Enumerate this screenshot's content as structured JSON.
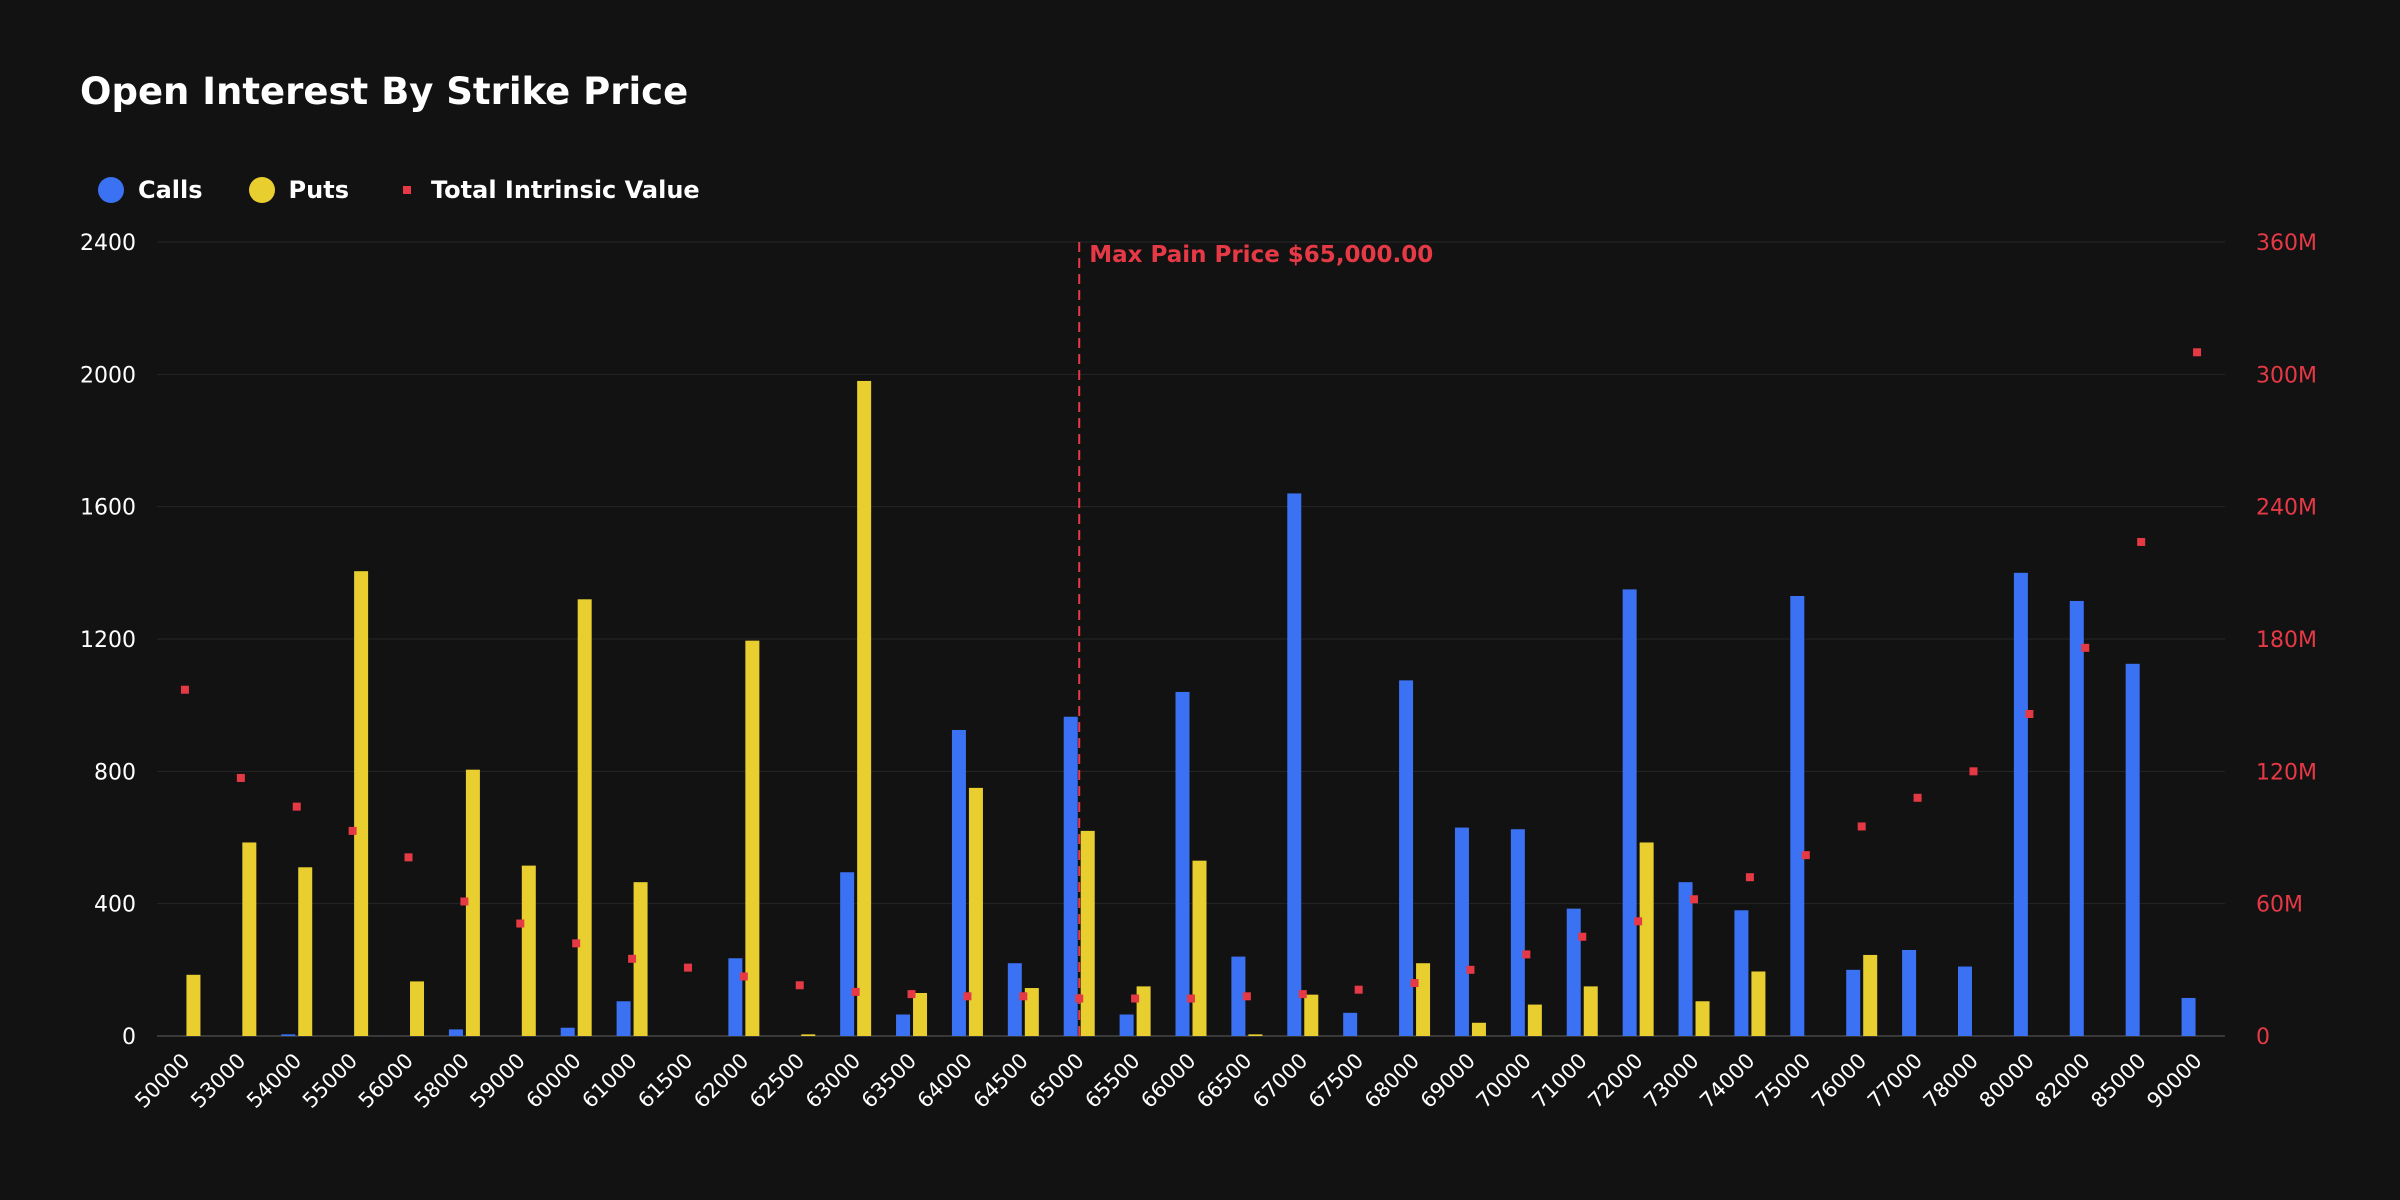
{
  "chart_data": {
    "type": "bar",
    "title": "Open Interest By Strike Price",
    "legend_position": "top-left",
    "grid": true,
    "categories": [
      "50000",
      "53000",
      "54000",
      "55000",
      "56000",
      "58000",
      "59000",
      "60000",
      "61000",
      "61500",
      "62000",
      "62500",
      "63000",
      "63500",
      "64000",
      "64500",
      "65000",
      "65500",
      "66000",
      "66500",
      "67000",
      "67500",
      "68000",
      "69000",
      "70000",
      "71000",
      "72000",
      "73000",
      "74000",
      "75000",
      "76000",
      "77000",
      "78000",
      "80000",
      "82000",
      "85000",
      "90000"
    ],
    "series": [
      {
        "name": "Calls",
        "type": "bar",
        "axis": "left",
        "values": [
          0,
          0,
          5,
          0,
          0,
          20,
          0,
          25,
          105,
          0,
          235,
          0,
          495,
          65,
          925,
          220,
          965,
          65,
          1040,
          240,
          1640,
          70,
          1075,
          630,
          625,
          385,
          1350,
          465,
          380,
          1330,
          200,
          260,
          210,
          1400,
          1315,
          1125,
          115
        ]
      },
      {
        "name": "Puts",
        "type": "bar",
        "axis": "left",
        "values": [
          185,
          585,
          510,
          1405,
          165,
          805,
          515,
          1320,
          465,
          0,
          1195,
          5,
          1980,
          130,
          750,
          145,
          620,
          150,
          530,
          5,
          125,
          0,
          220,
          40,
          95,
          150,
          585,
          105,
          195,
          0,
          245,
          0,
          0,
          0,
          0,
          0,
          0
        ]
      },
      {
        "name": "Total Intrinsic Value",
        "type": "scatter",
        "axis": "right",
        "values": [
          157,
          117,
          104,
          93,
          81,
          61,
          51,
          42,
          35,
          31,
          27,
          23,
          20,
          19,
          18,
          18,
          17,
          17,
          17,
          18,
          19,
          21,
          24,
          30,
          37,
          45,
          52,
          62,
          72,
          82,
          95,
          108,
          120,
          146,
          176,
          224,
          310
        ]
      }
    ],
    "left_axis": {
      "ylim": [
        0,
        2400
      ],
      "ticks": [
        "0",
        "400",
        "800",
        "1200",
        "1600",
        "2000",
        "2400"
      ]
    },
    "right_axis": {
      "ylim": [
        0,
        360
      ],
      "ticks": [
        "0",
        "60M",
        "120M",
        "180M",
        "240M",
        "300M",
        "360M"
      ]
    },
    "annotation": {
      "label": "Max Pain Price $65,000.00",
      "category": "65000"
    },
    "colors": {
      "calls": "#3b71f3",
      "puts": "#e8cf2f",
      "intrinsic": "#e63946",
      "grid": "#262626",
      "background": "#121212"
    }
  }
}
